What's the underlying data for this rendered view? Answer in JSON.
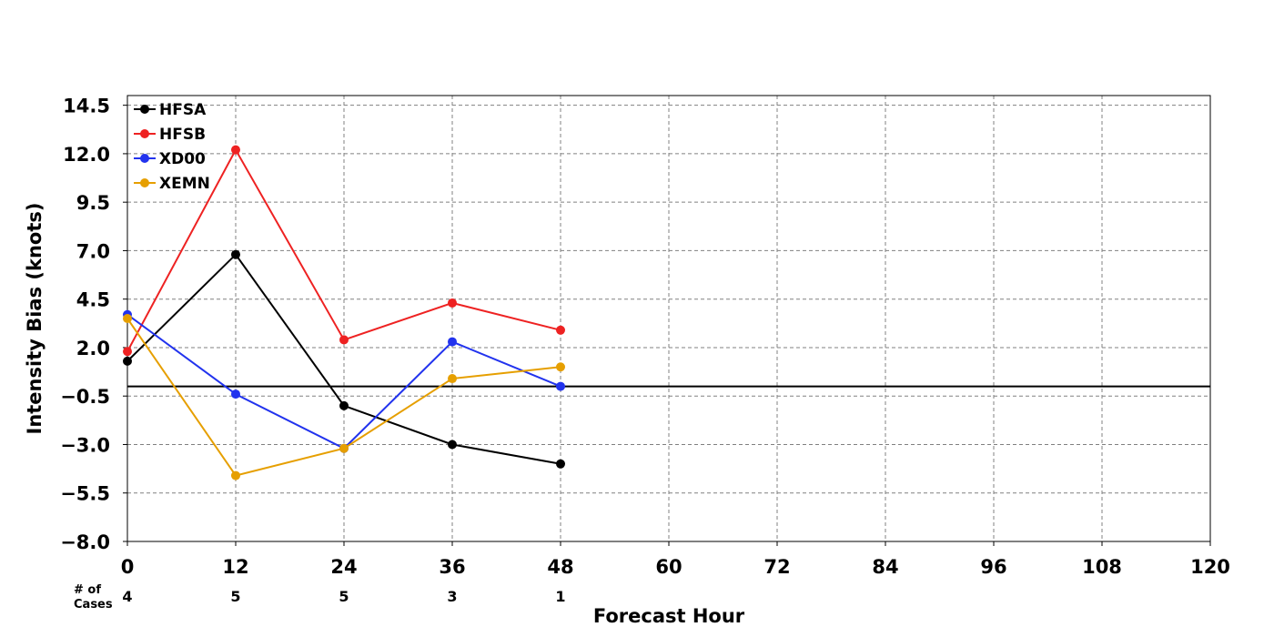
{
  "chart_data": {
    "type": "line",
    "title": "",
    "xlabel": "Forecast Hour",
    "ylabel": "Intensity Bias (knots)",
    "xlim": [
      0,
      120
    ],
    "ylim": [
      -8.0,
      15.0
    ],
    "x_ticks": [
      0,
      12,
      24,
      36,
      48,
      60,
      72,
      84,
      96,
      108,
      120
    ],
    "y_ticks": [
      -8.0,
      -5.5,
      -3.0,
      -0.5,
      2.0,
      4.5,
      7.0,
      9.5,
      12.0,
      14.5
    ],
    "x_tick_labels": [
      "0",
      "12",
      "24",
      "36",
      "48",
      "60",
      "72",
      "84",
      "96",
      "108",
      "120"
    ],
    "y_tick_labels": [
      "−8.0",
      "−5.5",
      "−3.0",
      "−0.5",
      "2.0",
      "4.5",
      "7.0",
      "9.5",
      "12.0",
      "14.5"
    ],
    "grid": true,
    "zero_line": 0,
    "legend_position": "top-left",
    "series": [
      {
        "name": "HFSA",
        "color": "#000000",
        "x": [
          0,
          12,
          24,
          36,
          48
        ],
        "y": [
          1.3,
          6.8,
          -1.0,
          -3.0,
          -4.0
        ]
      },
      {
        "name": "HFSB",
        "color": "#ee2222",
        "x": [
          0,
          12,
          24,
          36,
          48
        ],
        "y": [
          1.8,
          12.2,
          2.4,
          4.3,
          2.9
        ]
      },
      {
        "name": "XD00",
        "color": "#2233ee",
        "x": [
          0,
          12,
          24,
          36,
          48
        ],
        "y": [
          3.7,
          -0.4,
          -3.2,
          2.3,
          0.0
        ]
      },
      {
        "name": "XEMN",
        "color": "#e69f00",
        "x": [
          0,
          12,
          24,
          36,
          48
        ],
        "y": [
          3.5,
          -4.6,
          -3.2,
          0.4,
          1.0
        ]
      }
    ],
    "cases": {
      "label_line1": "# of",
      "label_line2": "Cases",
      "x": [
        0,
        12,
        24,
        36,
        48
      ],
      "counts": [
        "4",
        "5",
        "5",
        "3",
        "1"
      ]
    }
  }
}
